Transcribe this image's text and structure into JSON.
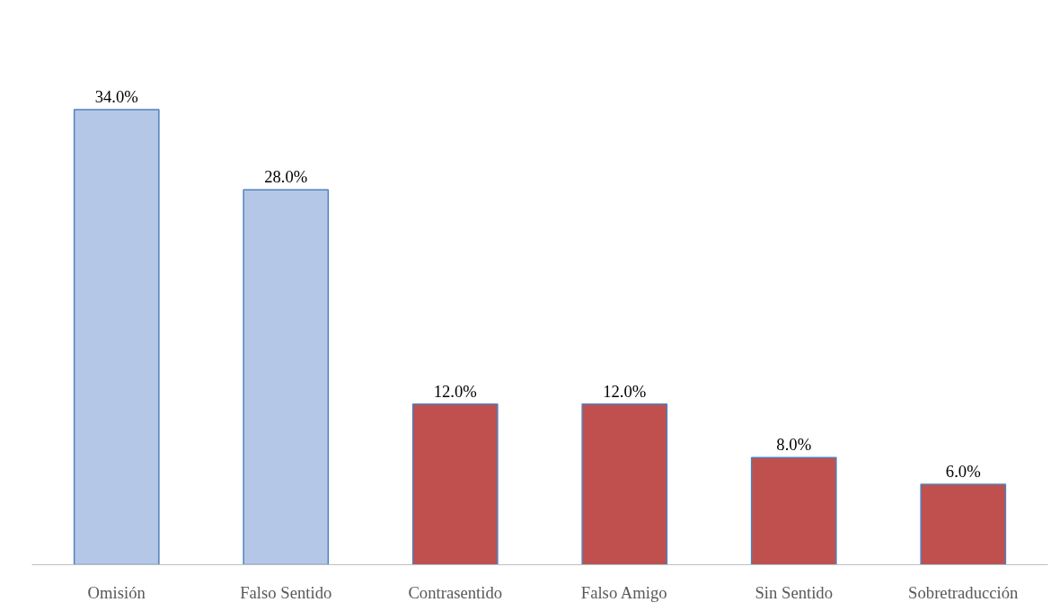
{
  "chart_data": {
    "type": "bar",
    "categories": [
      "Omisión",
      "Falso Sentido",
      "Contrasentido",
      "Falso Amigo",
      "Sin Sentido",
      "Sobretraducción"
    ],
    "values": [
      34,
      28,
      12,
      12,
      8,
      6
    ],
    "colors": [
      "#b4c7e7",
      "#b4c7e7",
      "#c0504d",
      "#c0504d",
      "#c0504d",
      "#c0504d"
    ],
    "value_labels": [
      "34.0%",
      "28.0%",
      "12.0%",
      "12.0%",
      "8.0%",
      "6.0%"
    ],
    "grid": false
  }
}
